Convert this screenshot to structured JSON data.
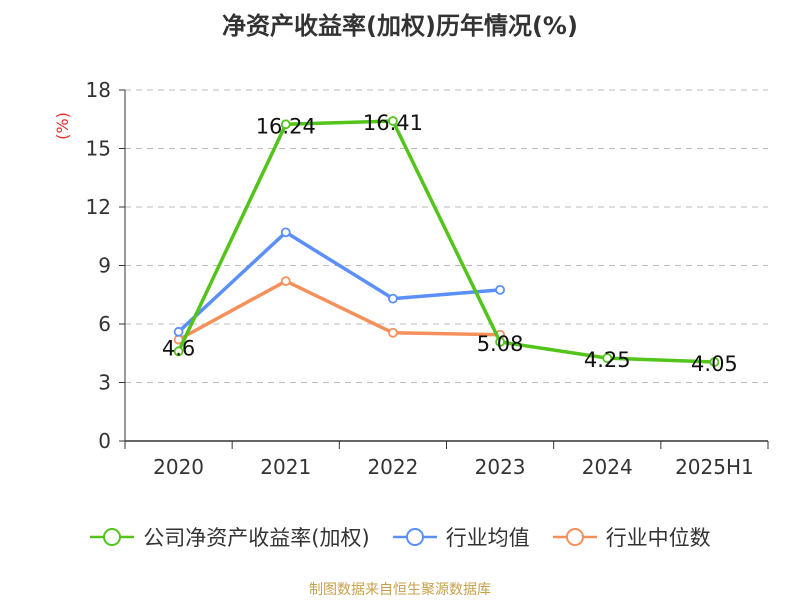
{
  "title": "净资产收益率(加权)历年情况(%)",
  "source_note": "制图数据来自恒生聚源数据库",
  "colors": {
    "grid": "#bbbbbb",
    "axis": "#333333",
    "ylabel": "#e0302d",
    "title": "#333333",
    "source": "#c7a04b"
  },
  "chart_data": {
    "type": "line",
    "title": "净资产收益率(加权)历年情况(%)",
    "xlabel": "",
    "ylabel": "(%)",
    "ylim": [
      0,
      18
    ],
    "yticks": [
      0,
      3,
      6,
      9,
      12,
      15,
      18
    ],
    "grid": true,
    "legend_position": "bottom",
    "categories": [
      "2020",
      "2021",
      "2022",
      "2023",
      "2024",
      "2025H1"
    ],
    "series": [
      {
        "name": "公司净资产收益率(加权)",
        "color": "#52c41a",
        "values": [
          4.6,
          16.24,
          16.41,
          5.08,
          4.25,
          4.05
        ],
        "labels": [
          "4.6",
          "16.24",
          "16.41",
          "5.08",
          "4.25",
          "4.05"
        ]
      },
      {
        "name": "行业均值",
        "color": "#5b8ff9",
        "values": [
          5.6,
          10.7,
          7.3,
          7.75,
          null,
          null
        ]
      },
      {
        "name": "行业中位数",
        "color": "#f6905a",
        "values": [
          5.2,
          8.2,
          5.55,
          5.45,
          null,
          null
        ]
      }
    ]
  }
}
